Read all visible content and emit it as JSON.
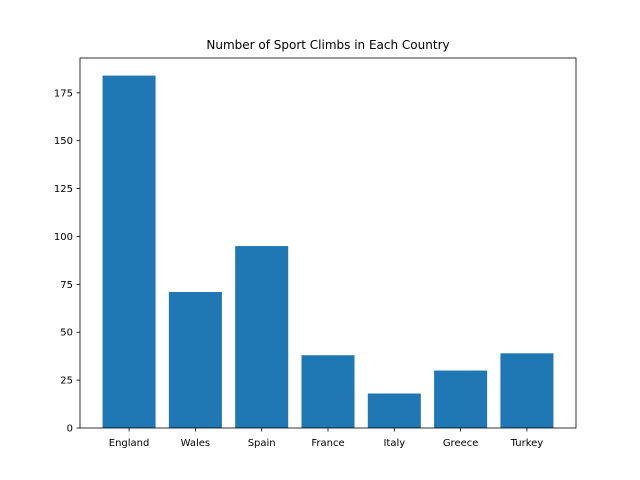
{
  "chart_data": {
    "type": "bar",
    "title": "Number of Sport Climbs in Each Country",
    "xlabel": "",
    "ylabel": "",
    "categories": [
      "England",
      "Wales",
      "Spain",
      "France",
      "Italy",
      "Greece",
      "Turkey"
    ],
    "values": [
      184,
      71,
      95,
      38,
      18,
      30,
      39
    ],
    "ylim": [
      0,
      193.2
    ],
    "yticks": [
      0,
      25,
      50,
      75,
      100,
      125,
      150,
      175
    ],
    "bar_color": "#1f77b4",
    "grid": false,
    "legend": "none"
  }
}
